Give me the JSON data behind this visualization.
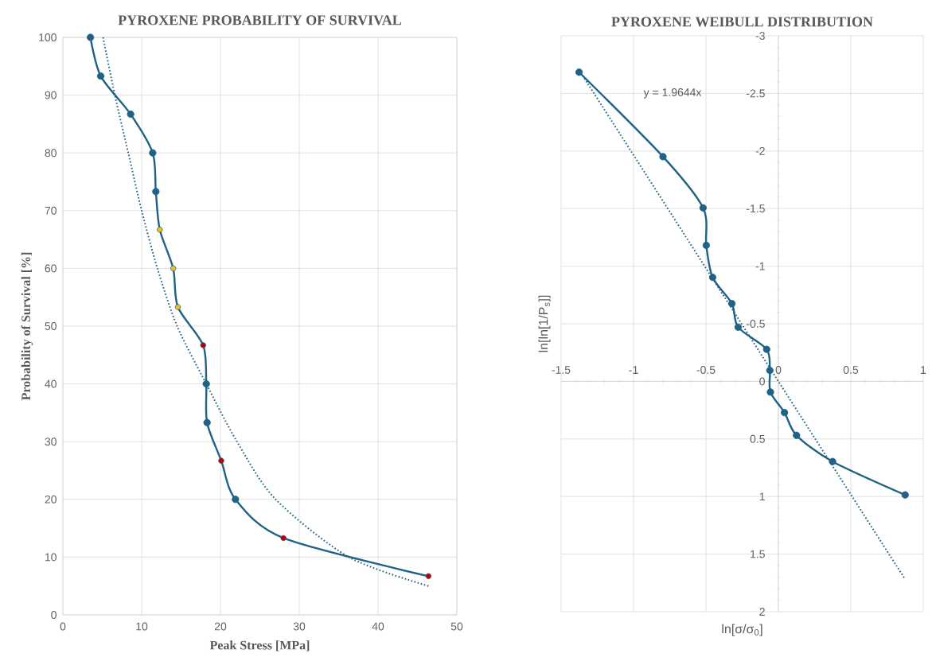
{
  "chart_data": [
    {
      "type": "line",
      "title": "PYROXENE PROBABILITY OF SURVIVAL",
      "xlabel": "Peak Stress [MPa]",
      "ylabel": "Probability of Survival [%]",
      "xlim": [
        0,
        50
      ],
      "ylim": [
        0,
        100
      ],
      "xticks": [
        0,
        10,
        20,
        30,
        40,
        50
      ],
      "yticks": [
        0,
        10,
        20,
        30,
        40,
        50,
        60,
        70,
        80,
        90,
        100
      ],
      "grid": true,
      "marker": "circle",
      "series": [
        {
          "color": "#1f6285",
          "x": [
            3.5,
            4.8,
            8.6,
            11.4,
            11.8,
            12.3,
            14.0,
            14.6,
            17.8,
            18.2,
            18.3,
            20.1,
            21.9,
            28.0,
            46.4
          ],
          "values": [
            100,
            93.3,
            86.7,
            80,
            73.3,
            66.7,
            60,
            53.3,
            46.7,
            40,
            33.3,
            26.7,
            20,
            13.3,
            6.7
          ],
          "colors": [
            "#1f6285",
            "#1f6285",
            "#1f6285",
            "#1f6285",
            "#1f6285",
            "#f2c010",
            "#f2c010",
            "#f2c010",
            "#c00000",
            "#1f6285",
            "#1f6285",
            "#c00000",
            "#1f6285",
            "#c00000",
            "#c00000"
          ]
        },
        {
          "type": "line",
          "color": "#1f6285",
          "line_style": "dotted",
          "marker": "none",
          "x": [
            5.1,
            6.6,
            8.3,
            10.0,
            12.0,
            14.5,
            18.2,
            22.1,
            27.0,
            36.3,
            46.4
          ],
          "values": [
            100,
            90,
            80,
            70,
            60,
            50,
            40,
            30,
            20,
            10,
            5.0
          ]
        }
      ]
    },
    {
      "type": "line",
      "title": "PYROXENE WEIBULL DISTRIBUTION",
      "xlabel": "ln[σ/σ$_{0}$]",
      "ylabel": "ln[ln[1/P$_{s}$]]",
      "xlim": [
        -1.5,
        1
      ],
      "ylim": [
        2,
        -3
      ],
      "xticks": [
        -1.5,
        -1,
        -0.5,
        0,
        0.5,
        1
      ],
      "yticks": [
        -3,
        -2.5,
        -2,
        -1.5,
        -1,
        -0.5,
        0,
        0.5,
        1,
        1.5,
        2
      ],
      "grid": true,
      "marker": "circle",
      "annotations": [
        "y = 1.9644x"
      ],
      "series": [
        {
          "color": "#1f6285",
          "x": [
            -1.376,
            -0.797,
            -0.52,
            -0.498,
            -0.454,
            -0.321,
            -0.278,
            -0.081,
            -0.059,
            -0.055,
            0.042,
            0.125,
            0.374,
            0.875
          ],
          "values": [
            -2.684,
            -1.951,
            -1.506,
            -1.181,
            -0.903,
            -0.675,
            -0.47,
            -0.278,
            -0.095,
            0.093,
            0.271,
            0.469,
            0.696,
            0.986
          ]
        },
        {
          "type": "line",
          "color": "#1f6285",
          "line_style": "dotted",
          "marker": "none",
          "x": [
            -1.376,
            0.875
          ],
          "values": [
            -2.703,
            1.719
          ]
        }
      ]
    }
  ]
}
